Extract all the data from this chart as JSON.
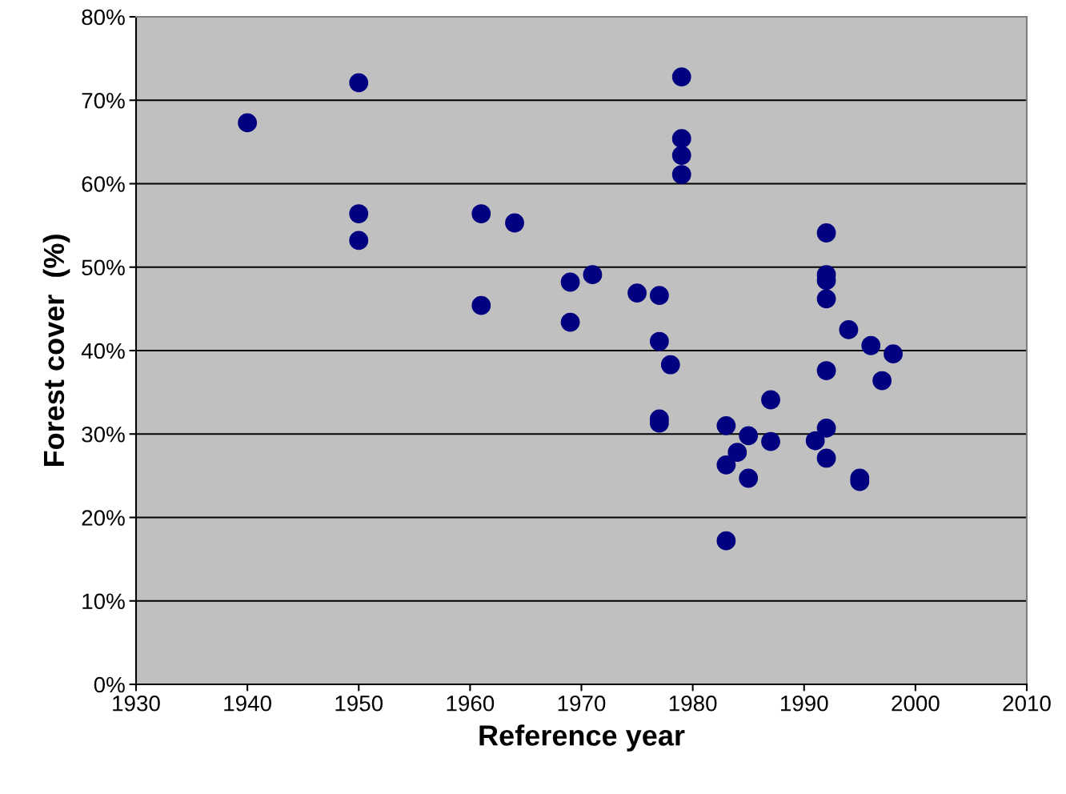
{
  "chart_data": {
    "type": "scatter",
    "xlabel": "Reference year",
    "ylabel": "Forest cover  (%)",
    "x": [
      1940,
      1950,
      1950,
      1950,
      1961,
      1961,
      1964,
      1969,
      1969,
      1971,
      1975,
      1977,
      1977,
      1977,
      1977,
      1978,
      1979,
      1979,
      1979,
      1979,
      1983,
      1983,
      1983,
      1984,
      1985,
      1985,
      1987,
      1987,
      1991,
      1992,
      1992,
      1992,
      1992,
      1992,
      1992,
      1992,
      1994,
      1995,
      1995,
      1996,
      1997,
      1998
    ],
    "series": [
      {
        "color": "#000080",
        "values": [
          67.3,
          72.1,
          56.4,
          53.2,
          56.4,
          45.4,
          55.3,
          48.2,
          43.4,
          49.1,
          46.9,
          46.6,
          41.1,
          31.8,
          31.3,
          38.3,
          72.8,
          65.4,
          63.4,
          61.1,
          31.0,
          26.3,
          17.2,
          27.8,
          29.8,
          24.7,
          34.1,
          29.1,
          29.2,
          54.1,
          49.1,
          48.4,
          46.2,
          37.6,
          30.7,
          27.1,
          42.5,
          24.7,
          24.3,
          40.6,
          36.4,
          39.6
        ]
      }
    ],
    "xlim": [
      1930,
      2010
    ],
    "xticks": [
      1930,
      1940,
      1950,
      1960,
      1970,
      1980,
      1990,
      2000,
      2010
    ],
    "ylim": [
      0,
      80
    ],
    "yticks": [
      {
        "value": 0,
        "label": "0%"
      },
      {
        "value": 10,
        "label": "10%"
      },
      {
        "value": 20,
        "label": "20%"
      },
      {
        "value": 30,
        "label": "30%"
      },
      {
        "value": 40,
        "label": "40%"
      },
      {
        "value": 50,
        "label": "50%"
      },
      {
        "value": 60,
        "label": "60%"
      },
      {
        "value": 70,
        "label": "70%"
      },
      {
        "value": 80,
        "label": "80%"
      }
    ],
    "grid": "y",
    "marker": "circle"
  }
}
